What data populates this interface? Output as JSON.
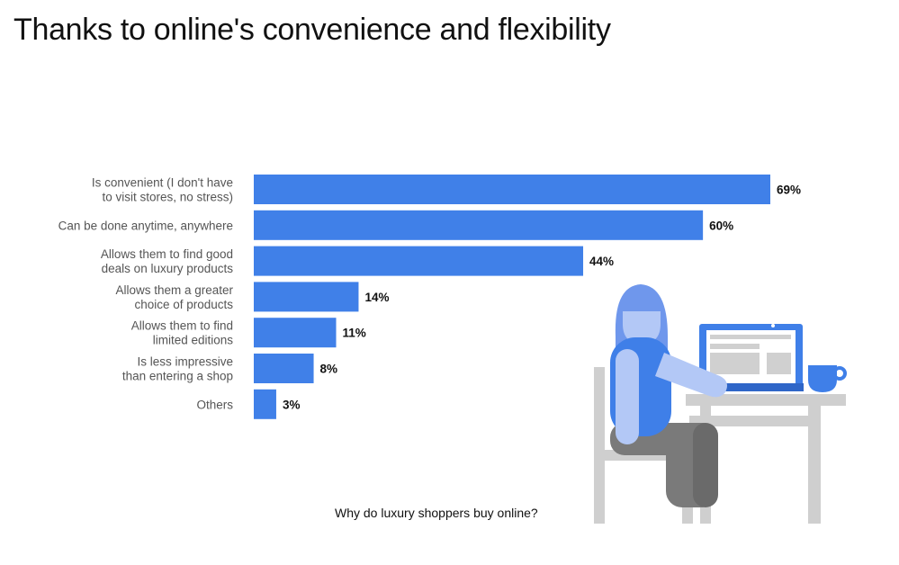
{
  "title": "Thanks to online's convenience and flexibility",
  "caption": "Why do luxury shoppers buy online?",
  "colors": {
    "bar": "#4080e8",
    "illustration_blue": "#3f7fe8",
    "illustration_light_blue": "#b3c8f6",
    "illustration_grey": "#7a7a7a",
    "illustration_light_grey": "#cfcfcf"
  },
  "chart_data": {
    "type": "bar",
    "orientation": "horizontal",
    "categories": [
      [
        "Is convenient (I don't have",
        "to visit stores, no stress)"
      ],
      [
        "Can be done anytime, anywhere"
      ],
      [
        "Allows them to find good",
        "deals on luxury products"
      ],
      [
        "Allows them a greater",
        "choice of products"
      ],
      [
        "Allows them to find",
        "limited editions"
      ],
      [
        "Is less impressive",
        "than entering a shop"
      ],
      [
        "Others"
      ]
    ],
    "values": [
      69,
      60,
      44,
      14,
      11,
      8,
      3
    ],
    "value_labels": [
      "69%",
      "60%",
      "44%",
      "14%",
      "11%",
      "8%",
      "3%"
    ],
    "xlim": [
      0,
      69
    ],
    "grid": false
  }
}
